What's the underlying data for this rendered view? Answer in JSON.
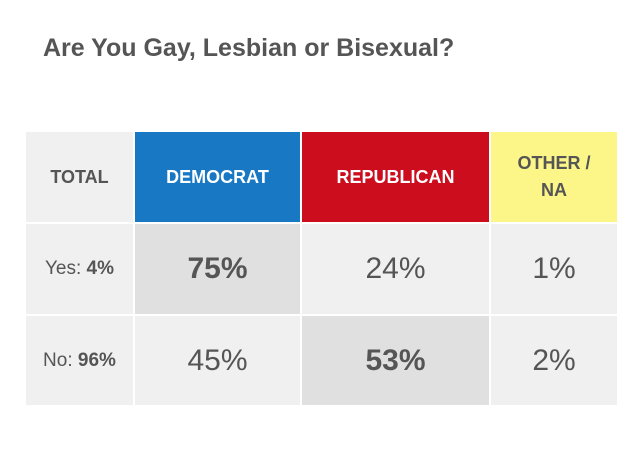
{
  "title": "Are You Gay, Lesbian or Bisexual?",
  "colors": {
    "democrat": "#1878c4",
    "republican": "#cc0d1d",
    "other": "#fcf587",
    "cell_background": "#f0f0f0",
    "highlight_background": "#e0e0e0",
    "text": "#555555"
  },
  "chart_data": {
    "type": "table",
    "title": "Are You Gay, Lesbian or Bisexual?",
    "columns": [
      "TOTAL",
      "DEMOCRAT",
      "REPUBLICAN",
      "OTHER / NA"
    ],
    "column_lines": {
      "total": [
        "TOTAL"
      ],
      "democrat": [
        "DEMOCRAT"
      ],
      "republican": [
        "REPUBLICAN"
      ],
      "other": [
        "OTHER /",
        "NA"
      ]
    },
    "rows": [
      {
        "answer": "Yes:",
        "total": "4%",
        "democrat": "75%",
        "republican": "24%",
        "other": "1%",
        "highlight": "democrat"
      },
      {
        "answer": "No:",
        "total": "96%",
        "democrat": "45%",
        "republican": "53%",
        "other": "2%",
        "highlight": "republican"
      }
    ]
  }
}
